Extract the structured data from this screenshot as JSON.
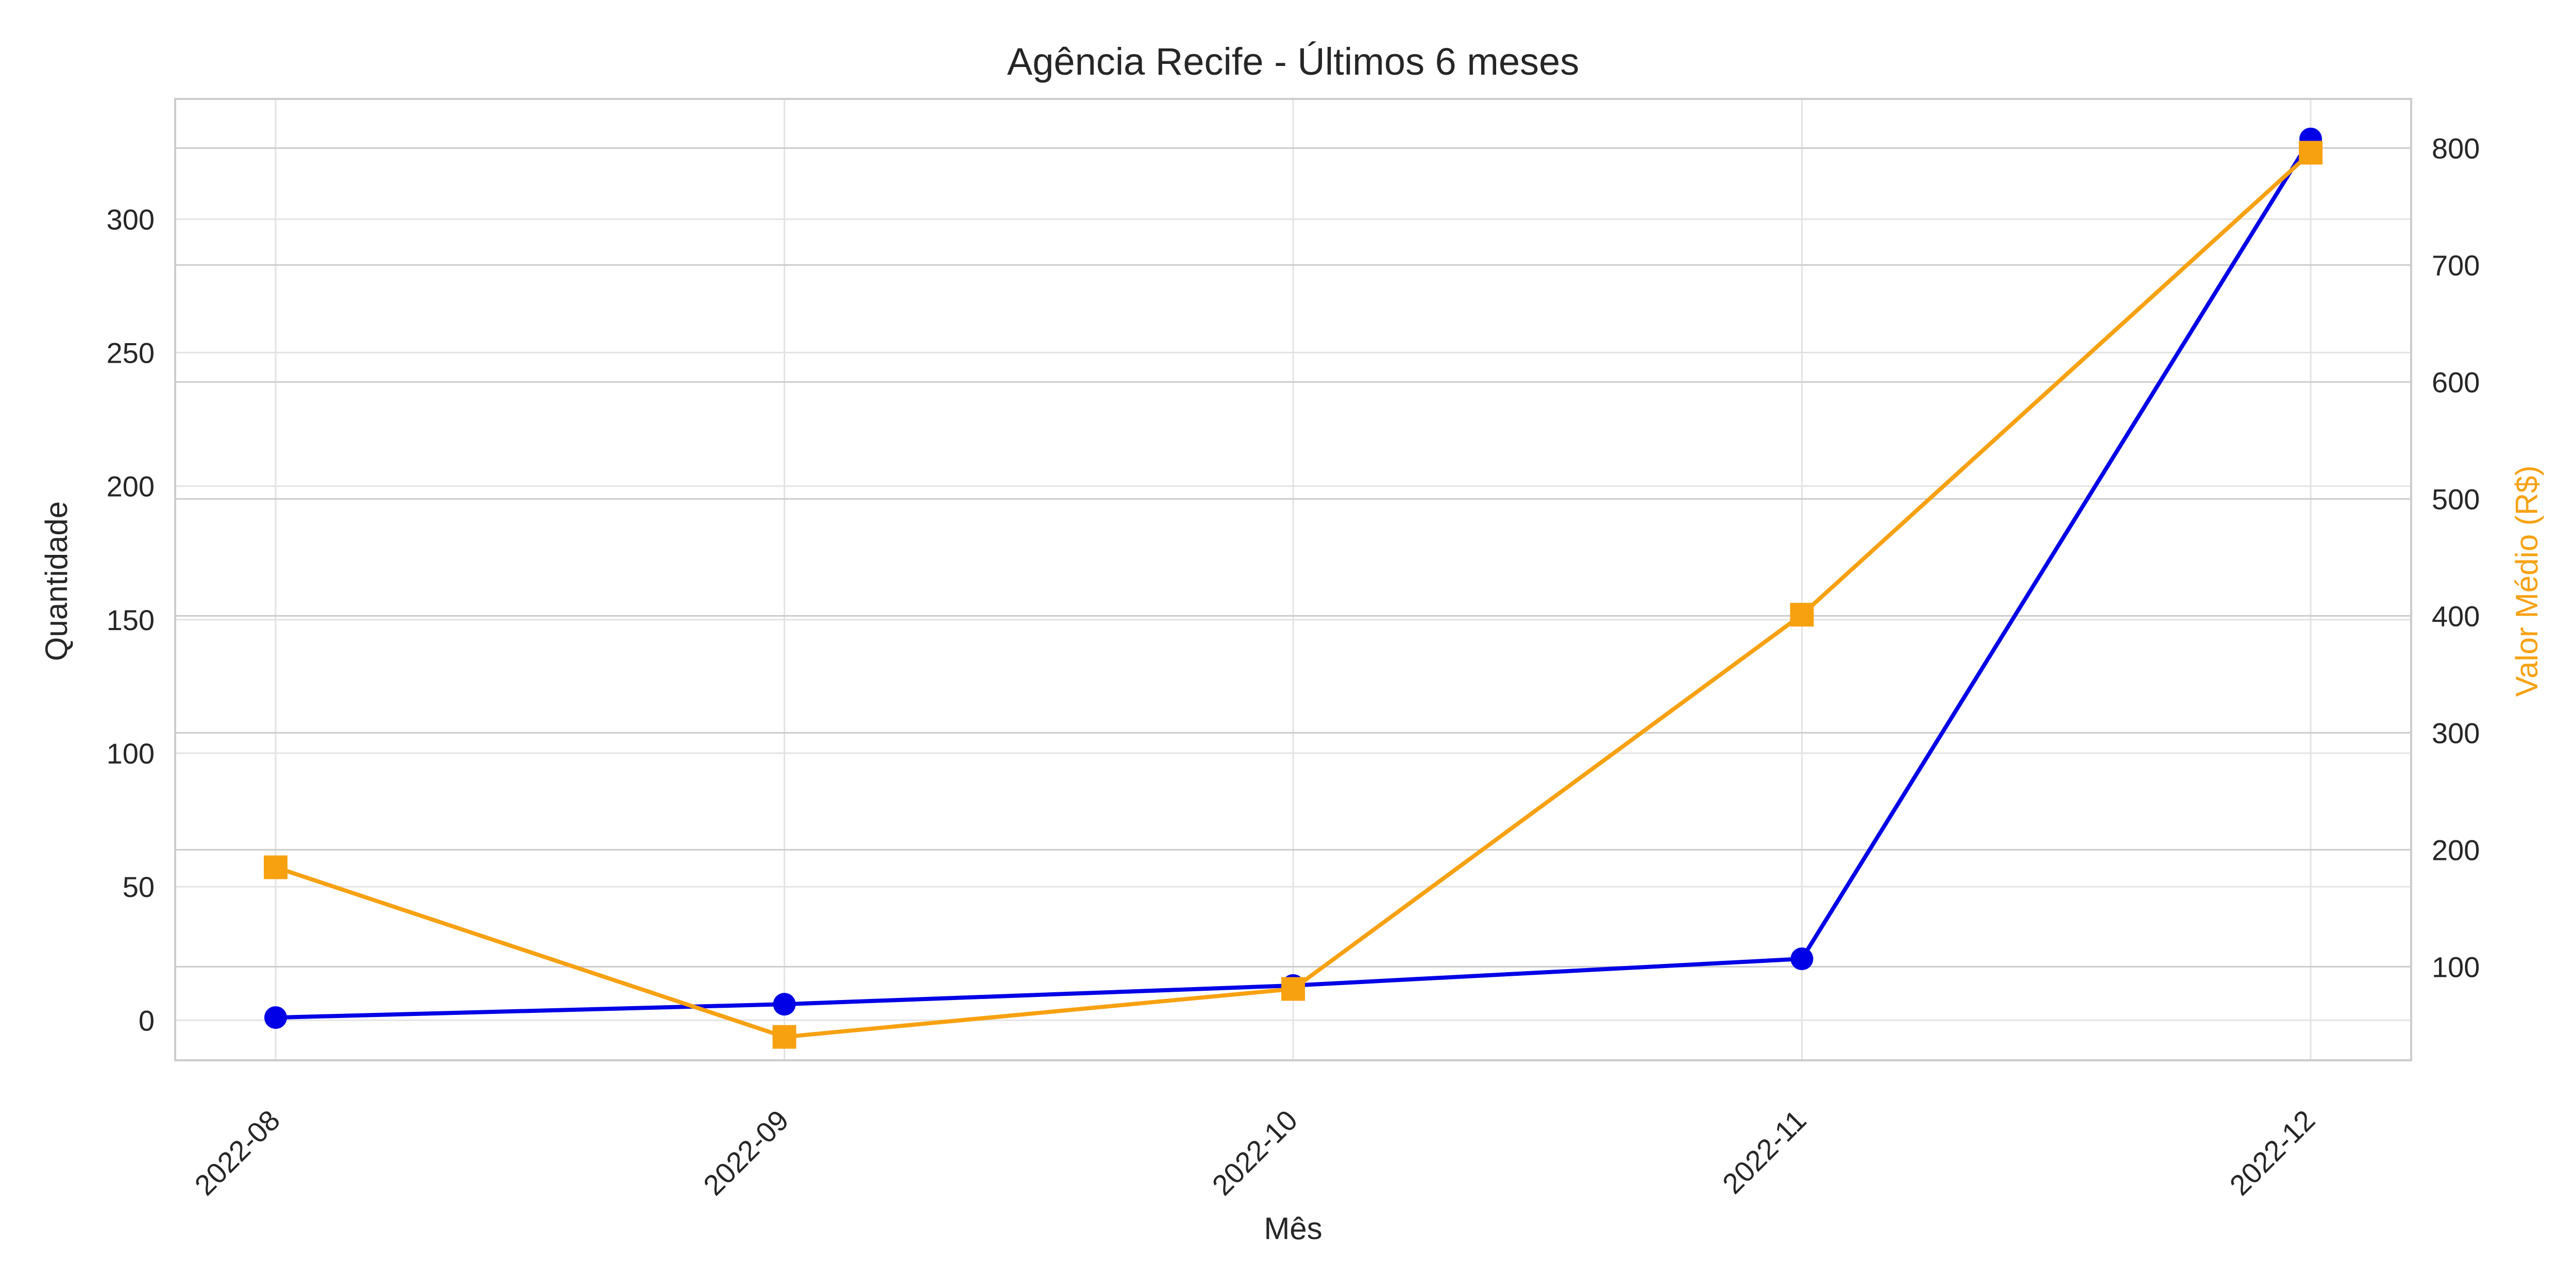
{
  "chart_data": {
    "type": "line",
    "title": "Agência Recife - Últimos 6 meses",
    "xlabel": "Mês",
    "ylabel_left": "Quantidade",
    "ylabel_right": "Valor Médio (R$)",
    "categories": [
      "2022-08",
      "2022-09",
      "2022-10",
      "2022-11",
      "2022-12"
    ],
    "y_left": {
      "range": [
        -15,
        345
      ],
      "ticks": [
        0,
        50,
        100,
        150,
        200,
        250,
        300
      ],
      "tick_labels": [
        "0",
        "50",
        "100",
        "150",
        "200",
        "250",
        "300"
      ]
    },
    "y_right": {
      "range": [
        20,
        842
      ],
      "ticks": [
        100,
        200,
        300,
        400,
        500,
        600,
        700,
        800
      ],
      "tick_labels": [
        "100",
        "200",
        "300",
        "400",
        "500",
        "600",
        "700",
        "800"
      ]
    },
    "grid": true,
    "series": [
      {
        "axis": "left",
        "color": "#0000e6",
        "marker": "circle",
        "values": [
          1,
          6,
          13,
          23,
          330
        ]
      },
      {
        "axis": "right",
        "color": "#f7a111",
        "marker": "square",
        "values": [
          185,
          40,
          81,
          401,
          796
        ]
      }
    ],
    "colors": {
      "right_axis_label": "#f7a111"
    }
  }
}
